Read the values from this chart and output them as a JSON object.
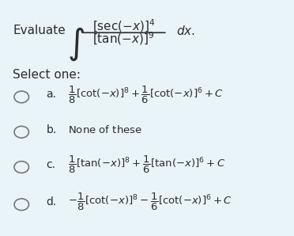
{
  "background_color": "#e8f4f8",
  "title_text": "Evaluate",
  "integral_numerator": "[sec(-x)]^4",
  "integral_denominator": "[tan(-x)]^9",
  "integral_suffix": "dx.",
  "select_one": "Select one:",
  "options": [
    {
      "label": "a.",
      "formula": "\\frac{1}{8}[\\cot(-x)]^8 + \\frac{1}{6}[\\cot(-x)]^6 + C"
    },
    {
      "label": "b.",
      "formula": "\\text{None of these}"
    },
    {
      "label": "c.",
      "formula": "\\frac{1}{8}[\\tan(-x)]^8 + \\frac{1}{6}[\\tan(-x)]^6 + C"
    },
    {
      "label": "d.",
      "formula": "-\\frac{1}{8}[\\cot(-x)]^8 - \\frac{1}{6}[\\cot(-x)]^6 + C"
    }
  ],
  "text_color": "#2c2c2c",
  "circle_color": "#777777",
  "font_size_main": 11,
  "font_size_label": 10
}
